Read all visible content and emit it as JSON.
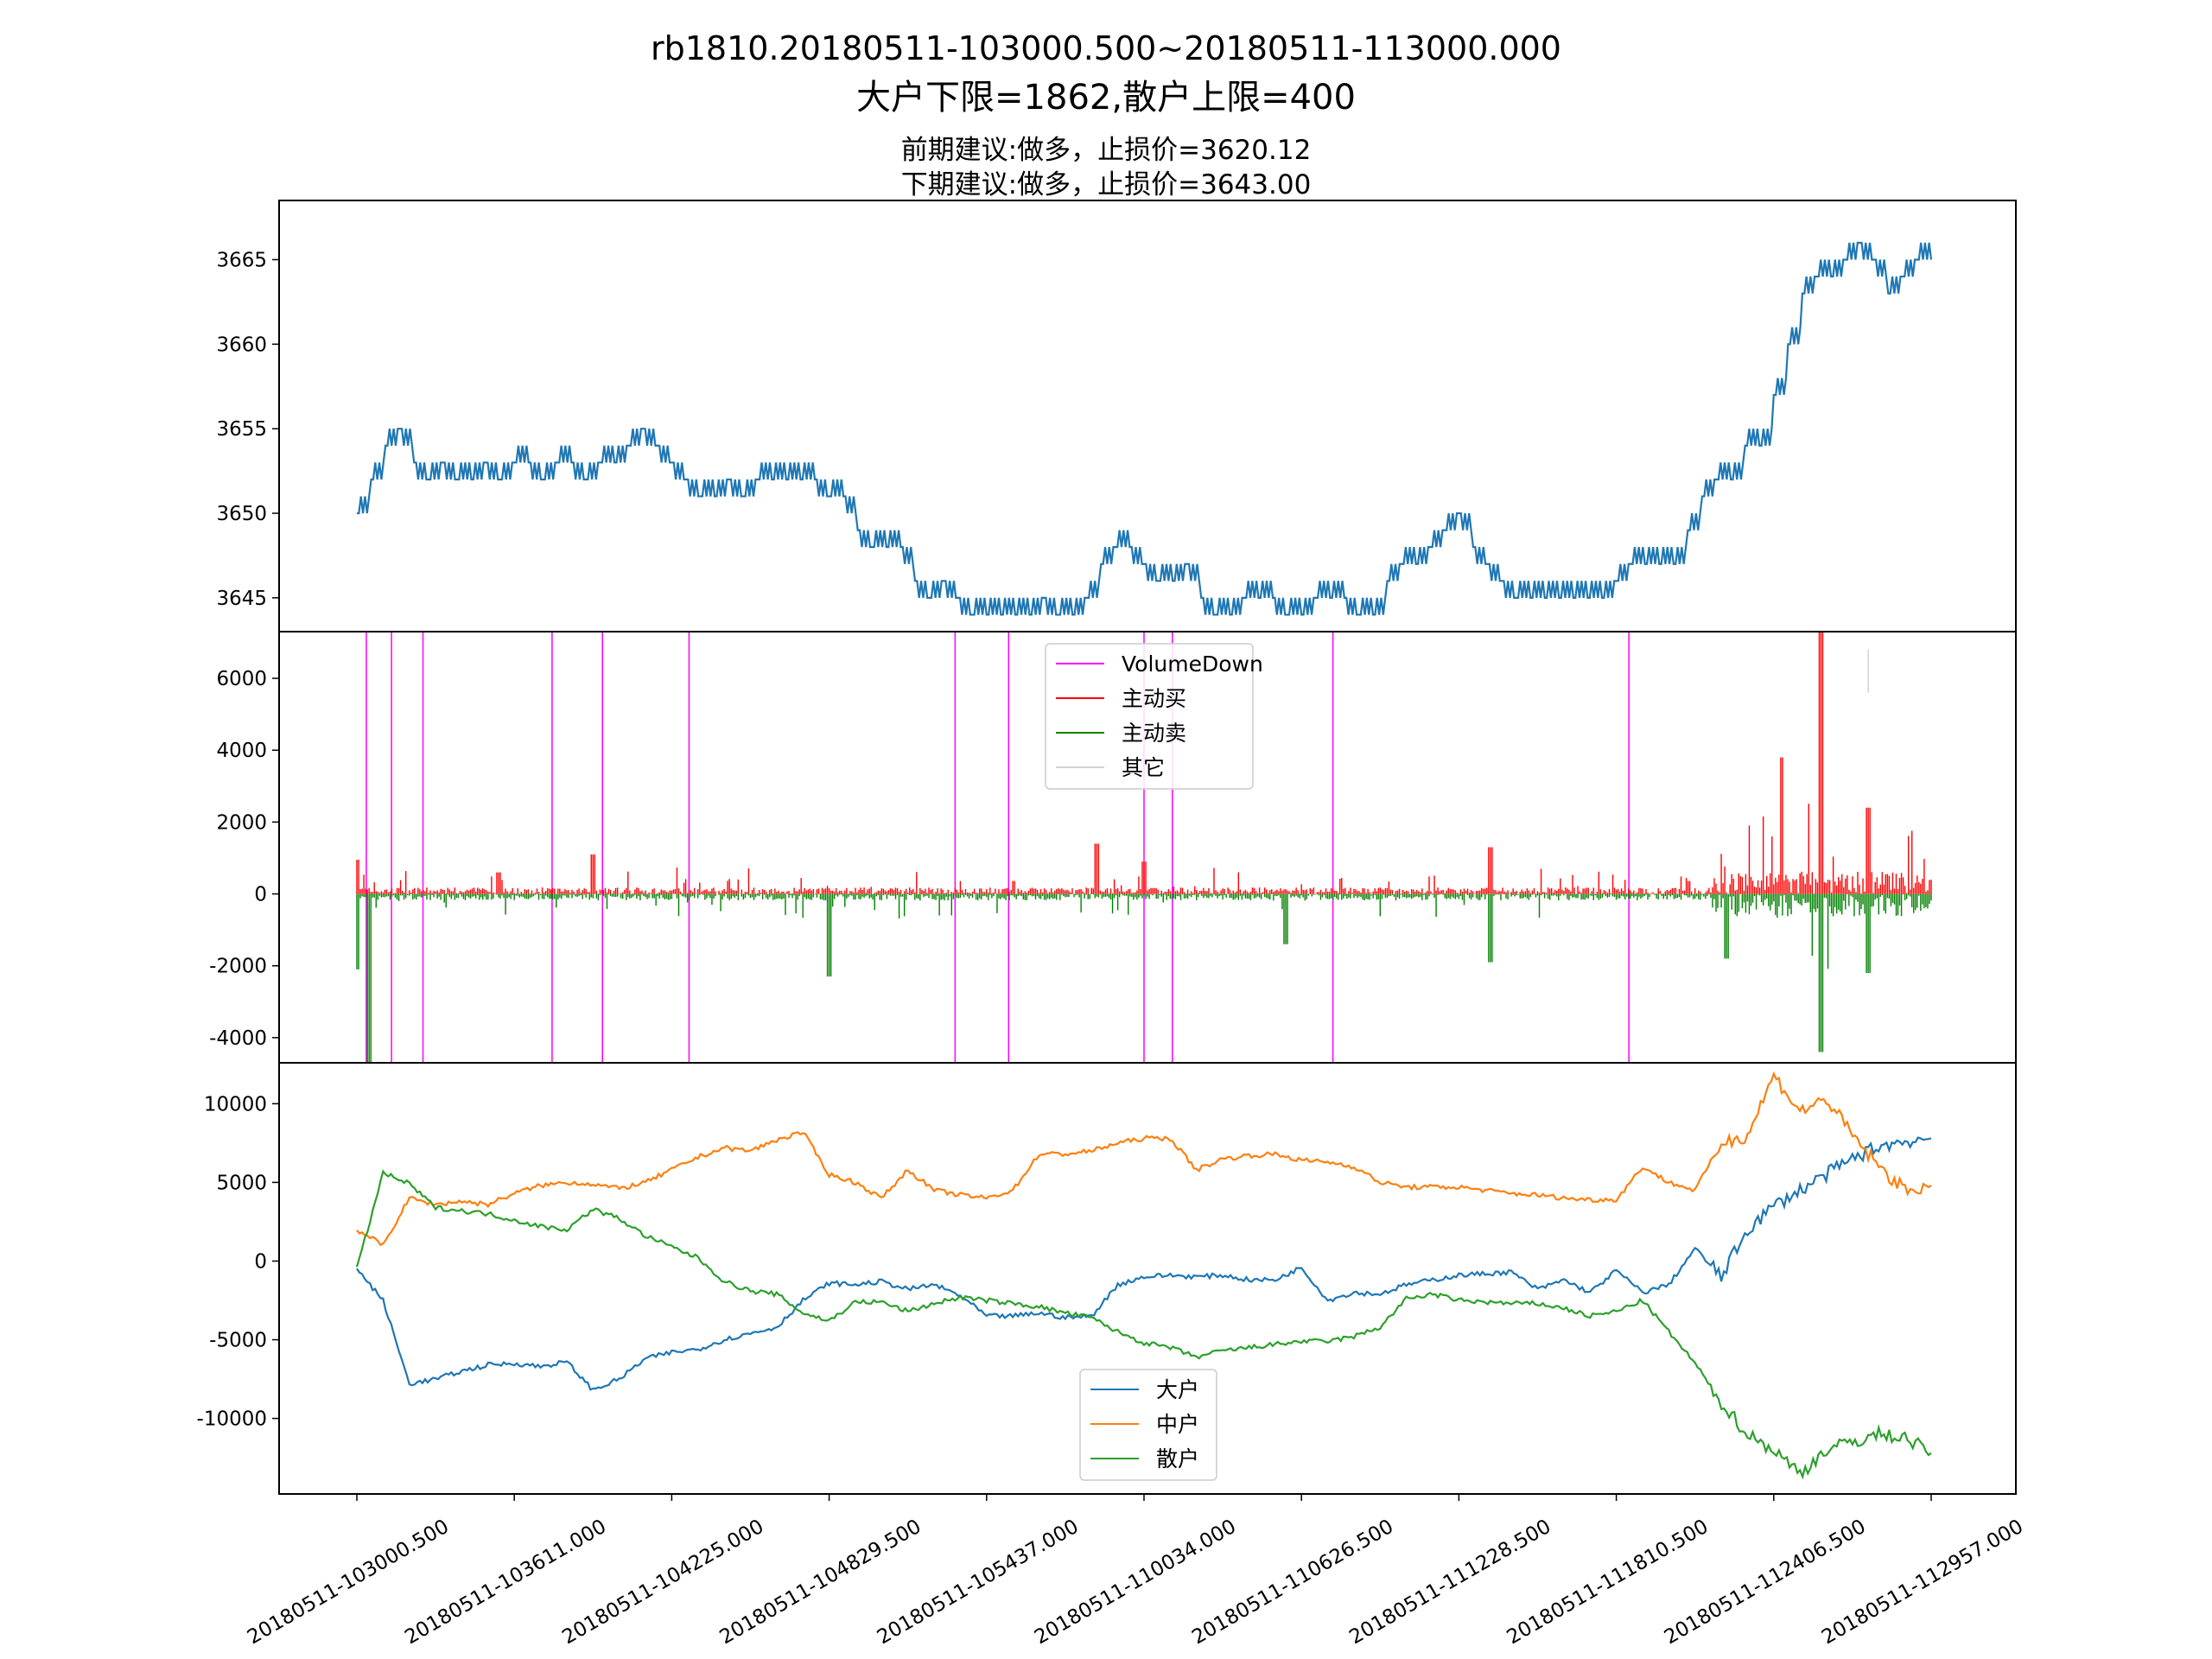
{
  "titles": {
    "main": "rb1810.20180511-103000.500~20180511-113000.000",
    "sub": "大户下限=1862,散户上限=400",
    "advice_prev": "前期建议:做多，止损价=3620.12",
    "advice_next": "下期建议:做多，止损价=3643.00"
  },
  "chart_data": [
    {
      "type": "line",
      "panel": "price",
      "ylim": [
        3643,
        3668.5
      ],
      "yticks": [
        3645,
        3650,
        3655,
        3660,
        3665
      ],
      "colors": {
        "price": "#1f77b4"
      },
      "series": [
        {
          "values": [
            3650,
            3652,
            3654,
            3655,
            3653,
            3652,
            3653,
            3652,
            3652,
            3653,
            3652,
            3653,
            3653,
            3652,
            3653,
            3653,
            3652,
            3653,
            3653,
            3654,
            3655,
            3654,
            3653,
            3652,
            3651,
            3651,
            3652,
            3651,
            3652,
            3652,
            3652,
            3652,
            3652,
            3651,
            3651,
            3649,
            3648,
            3648,
            3648,
            3646,
            3645,
            3646,
            3645,
            3644,
            3644,
            3644,
            3644,
            3644,
            3645,
            3644,
            3644,
            3645,
            3647,
            3648,
            3648,
            3647,
            3646,
            3646,
            3647,
            3645,
            3644,
            3644,
            3645,
            3645,
            3645,
            3644,
            3644,
            3645,
            3645,
            3645,
            3644,
            3644,
            3646,
            3647,
            3647,
            3648,
            3649,
            3650,
            3648,
            3647,
            3646,
            3645,
            3645,
            3645,
            3645,
            3645,
            3645,
            3645,
            3646,
            3647,
            3647,
            3647,
            3647,
            3649,
            3651,
            3652,
            3652,
            3654,
            3654,
            3657,
            3660,
            3663,
            3664,
            3664,
            3665,
            3666,
            3665,
            3663,
            3664,
            3665,
            3665
          ],
          "x_range": [
            0,
            1
          ]
        }
      ]
    },
    {
      "type": "bar",
      "panel": "volume",
      "ylim": [
        -4700,
        7300
      ],
      "yticks": [
        -4000,
        -2000,
        0,
        2000,
        4000,
        6000
      ],
      "legend": [
        "VolumeDown",
        "主动买",
        "主动卖",
        "其它"
      ],
      "colors": {
        "VolumeDown": "#ff00ff",
        "主动买": "#ff0000",
        "主动卖": "#008000",
        "其它": "#d3d3d3"
      },
      "volume_down_x": [
        0.006,
        0.022,
        0.042,
        0.124,
        0.156,
        0.211,
        0.38,
        0.414,
        0.5,
        0.518,
        0.62,
        0.808
      ],
      "buy_peaks": [
        [
          0.0,
          950
        ],
        [
          0.09,
          600
        ],
        [
          0.15,
          1100
        ],
        [
          0.47,
          1400
        ],
        [
          0.5,
          900
        ],
        [
          0.72,
          1300
        ],
        [
          0.9,
          1600
        ],
        [
          0.905,
          3800
        ],
        [
          0.93,
          7300
        ],
        [
          0.96,
          2400
        ]
      ],
      "sell_peaks": [
        [
          0.0,
          -2100
        ],
        [
          0.008,
          -4700
        ],
        [
          0.3,
          -2300
        ],
        [
          0.59,
          -1400
        ],
        [
          0.72,
          -1900
        ],
        [
          0.87,
          -1800
        ],
        [
          0.905,
          -2300
        ],
        [
          0.93,
          -4400
        ],
        [
          0.96,
          -2200
        ]
      ]
    },
    {
      "type": "line",
      "panel": "positions",
      "ylim": [
        -14800,
        12600
      ],
      "yticks": [
        -10000,
        -5000,
        0,
        5000,
        10000
      ],
      "legend": [
        "大户",
        "中户",
        "散户"
      ],
      "colors": {
        "大户": "#1f77b4",
        "中户": "#ff7f0e",
        "散户": "#2ca02c"
      },
      "series": [
        {
          "name": "大户",
          "values": [
            -500,
            -2500,
            -7800,
            -7500,
            -7000,
            -6600,
            -6500,
            -6700,
            -6400,
            -8200,
            -7500,
            -6200,
            -5800,
            -5600,
            -5000,
            -4600,
            -4200,
            -2500,
            -1400,
            -1500,
            -1300,
            -1800,
            -1500,
            -2200,
            -3500,
            -3500,
            -3300,
            -3600,
            -3500,
            -1500,
            -1000,
            -900,
            -1000,
            -900,
            -1200,
            -1200,
            -400,
            -2500,
            -2000,
            -2100,
            -1500,
            -1200,
            -900,
            -800,
            -700,
            -1800,
            -1200,
            -2000,
            -600,
            -2000,
            -1500,
            800,
            -1000,
            2000,
            3500,
            4500,
            5500,
            6500,
            7300,
            7600,
            7800
          ]
        },
        {
          "name": "中户",
          "values": [
            2000,
            1000,
            4000,
            3600,
            3800,
            3600,
            4300,
            4800,
            5000,
            4900,
            4600,
            5000,
            5800,
            6600,
            7200,
            7000,
            7700,
            8200,
            5500,
            5000,
            4000,
            5800,
            4500,
            4200,
            4000,
            4500,
            6800,
            6800,
            7000,
            7500,
            7800,
            7800,
            5800,
            6500,
            6700,
            6800,
            6400,
            6300,
            6000,
            5000,
            4700,
            4700,
            4700,
            4500,
            4300,
            4200,
            4000,
            3900,
            3900,
            6000,
            5000,
            4500,
            7500,
            8000,
            11800,
            9500,
            10300,
            8000,
            6000,
            4500,
            4800
          ]
        },
        {
          "name": "散户",
          "values": [
            -500,
            5600,
            4900,
            3400,
            3200,
            3000,
            2600,
            2200,
            2000,
            3300,
            2700,
            1600,
            900,
            200,
            -1300,
            -1900,
            -2100,
            -3300,
            -3800,
            -2600,
            -2600,
            -3200,
            -2700,
            -2300,
            -2500,
            -2700,
            -2900,
            -3300,
            -3600,
            -4500,
            -5200,
            -5500,
            -6100,
            -5700,
            -5500,
            -5300,
            -5100,
            -5100,
            -4800,
            -4200,
            -2400,
            -2100,
            -2500,
            -2600,
            -2700,
            -2700,
            -3000,
            -3500,
            -3200,
            -2500,
            -4500,
            -6500,
            -9000,
            -11000,
            -12000,
            -13500,
            -12000,
            -11500,
            -11000,
            -11200,
            -12200
          ]
        }
      ],
      "xticks": [
        "20180511-103000.500",
        "20180511-103611.000",
        "20180511-104225.000",
        "20180511-104829.500",
        "20180511-105437.000",
        "20180511-110034.000",
        "20180511-110626.500",
        "20180511-111228.500",
        "20180511-111810.500",
        "20180511-112406.500",
        "20180511-112957.000"
      ]
    }
  ]
}
